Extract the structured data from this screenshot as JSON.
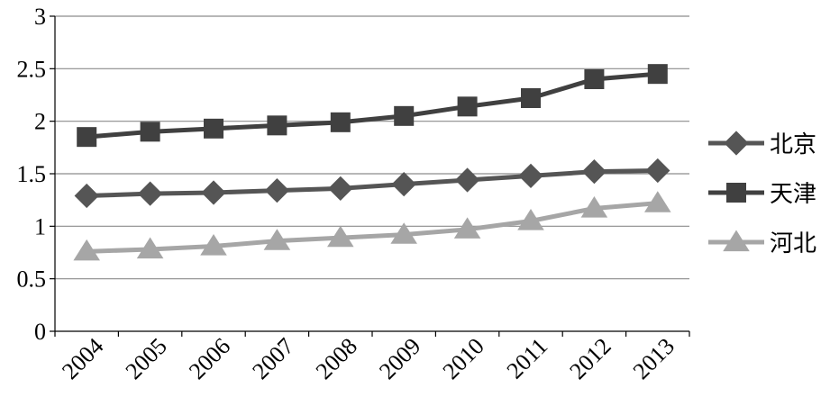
{
  "chart_data": {
    "type": "line",
    "categories": [
      "2004",
      "2005",
      "2006",
      "2007",
      "2008",
      "2009",
      "2010",
      "2011",
      "2012",
      "2013"
    ],
    "series": [
      {
        "name": "北京",
        "marker": "diamond",
        "color": "#555555",
        "values": [
          1.29,
          1.31,
          1.32,
          1.34,
          1.36,
          1.4,
          1.44,
          1.48,
          1.52,
          1.53
        ]
      },
      {
        "name": "天津",
        "marker": "square",
        "color": "#404040",
        "values": [
          1.85,
          1.9,
          1.93,
          1.96,
          1.99,
          2.05,
          2.14,
          2.22,
          2.4,
          2.45
        ]
      },
      {
        "name": "河北",
        "marker": "triangle",
        "color": "#a6a6a6",
        "values": [
          0.76,
          0.78,
          0.81,
          0.86,
          0.89,
          0.92,
          0.97,
          1.05,
          1.17,
          1.22
        ]
      }
    ],
    "yticks": [
      "0",
      "0.5",
      "1",
      "1.5",
      "2",
      "2.5",
      "3"
    ],
    "ylim": [
      0,
      3
    ],
    "grid": true,
    "legend_position": "right"
  }
}
